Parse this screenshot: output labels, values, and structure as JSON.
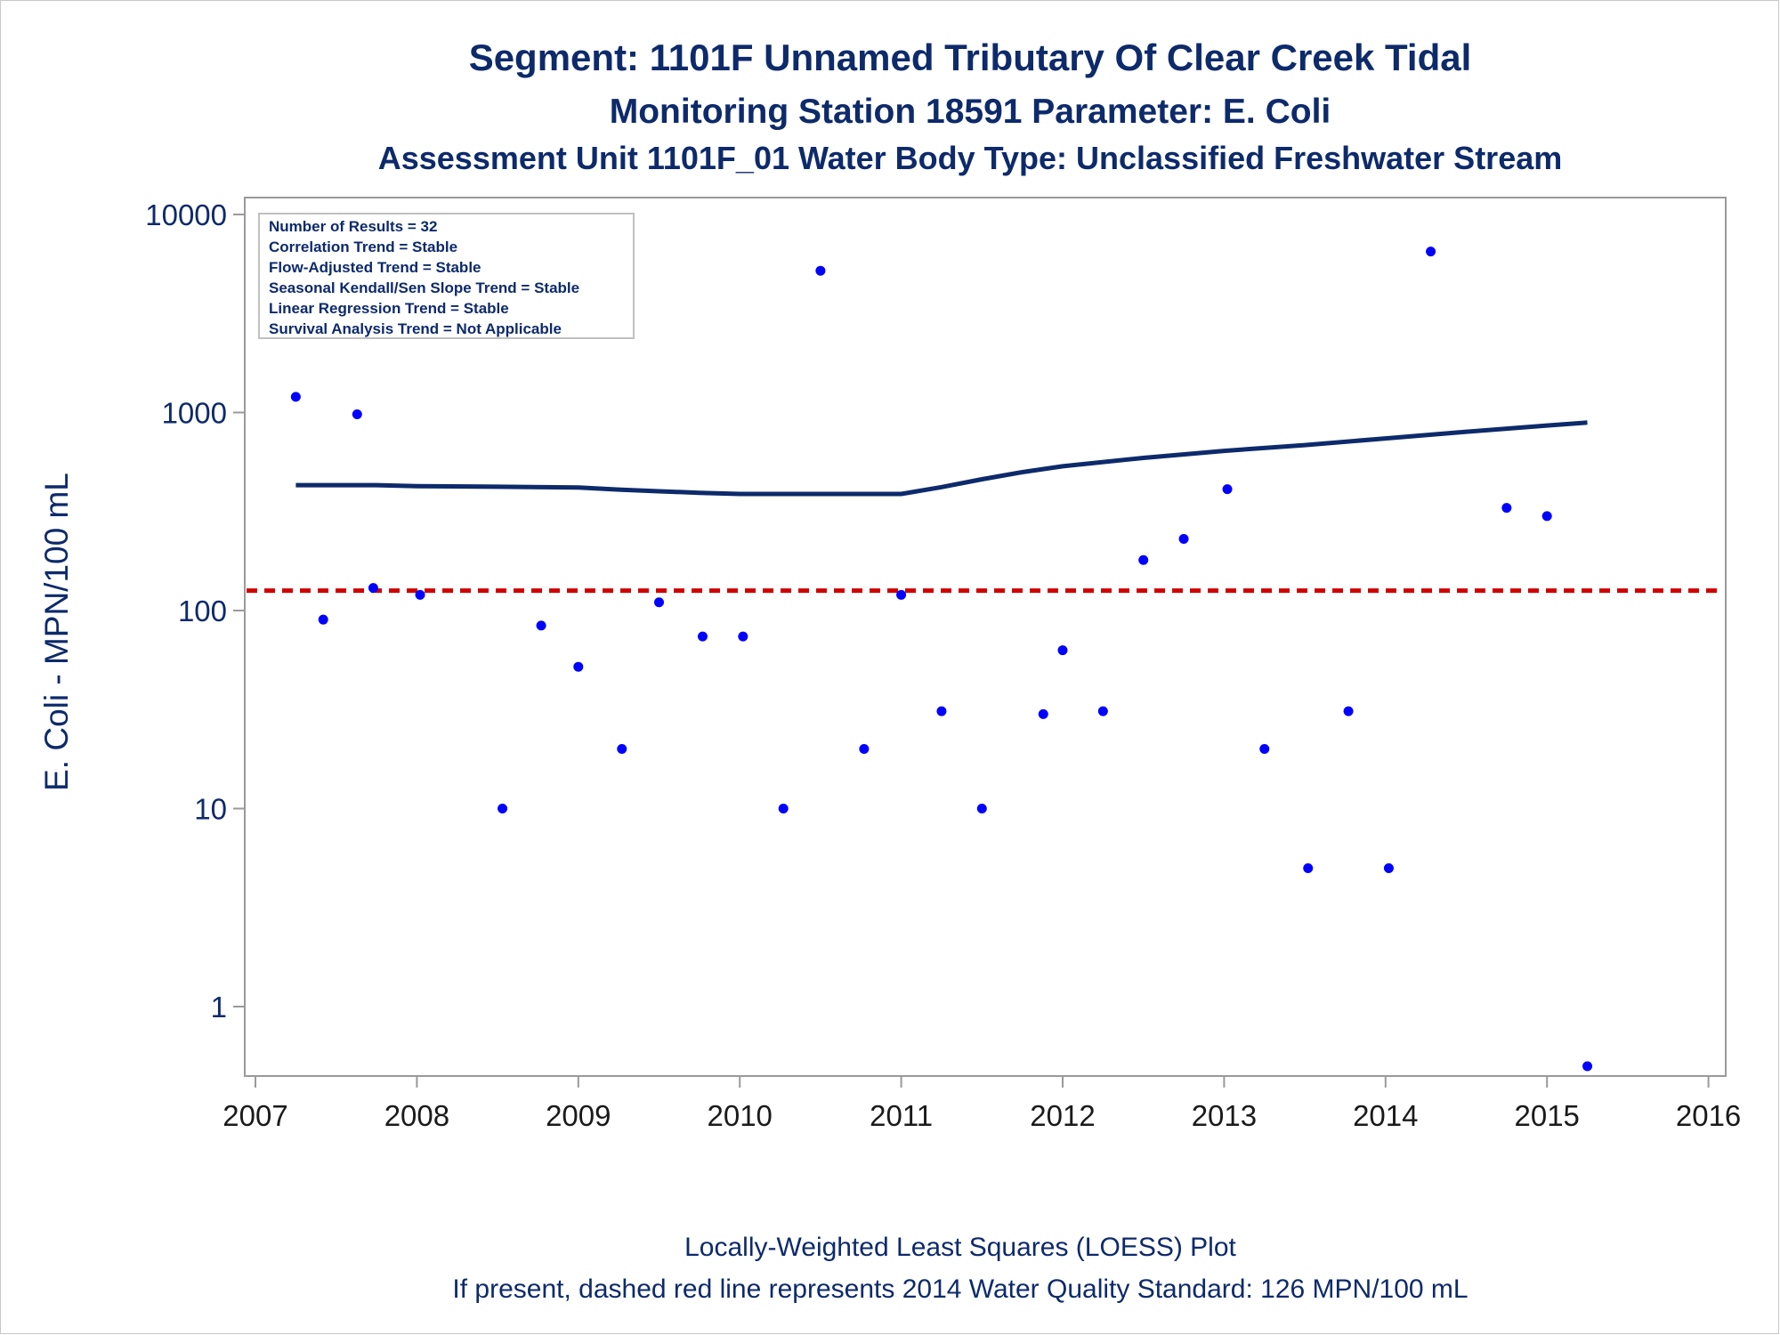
{
  "titles": {
    "line1": "Segment: 1101F  Unnamed Tributary Of Clear Creek Tidal",
    "line2": "Monitoring Station 18591 Parameter: E. Coli",
    "line3": "Assessment Unit 1101F_01   Water Body Type: Unclassified Freshwater Stream"
  },
  "stats_box": [
    "Number of Results = 32",
    "Correlation Trend = Stable",
    "Flow-Adjusted Trend = Stable",
    "Seasonal Kendall/Sen Slope Trend = Stable",
    "Linear Regression Trend = Stable",
    "Survival Analysis Trend = Not Applicable"
  ],
  "footnotes": {
    "line1": "Locally-Weighted Least Squares (LOESS) Plot",
    "line2": "If present, dashed red line represents 2014 Water Quality Standard: 126 MPN/100 mL"
  },
  "chart_data": {
    "type": "scatter",
    "title": "Segment: 1101F  Unnamed Tributary Of Clear Creek Tidal",
    "xlabel": "",
    "ylabel": "E. Coli - MPN/100 mL",
    "yscale": "log",
    "xlim": [
      2007,
      2016
    ],
    "ylim": [
      0.5,
      10000
    ],
    "x_ticks": [
      2007,
      2008,
      2009,
      2010,
      2011,
      2012,
      2013,
      2014,
      2015,
      2016
    ],
    "y_ticks": [
      1,
      10,
      100,
      1000,
      10000
    ],
    "y_tick_labels": [
      "1",
      "10",
      "100",
      "1000",
      "10000"
    ],
    "grid": false,
    "legend": "top-left",
    "colors": {
      "points": "#0000ff",
      "loess": "#0d2a6b",
      "standard": "#d00000",
      "text": "#0d2a6b"
    },
    "points": [
      [
        2007.25,
        1200
      ],
      [
        2007.42,
        90
      ],
      [
        2007.63,
        980
      ],
      [
        2007.73,
        130
      ],
      [
        2008.02,
        120
      ],
      [
        2008.53,
        10
      ],
      [
        2008.77,
        84
      ],
      [
        2009.0,
        52
      ],
      [
        2009.27,
        20
      ],
      [
        2009.5,
        110
      ],
      [
        2009.77,
        74
      ],
      [
        2010.02,
        74
      ],
      [
        2010.27,
        10
      ],
      [
        2010.5,
        5200
      ],
      [
        2010.77,
        20
      ],
      [
        2011.0,
        120
      ],
      [
        2011.25,
        31
      ],
      [
        2011.5,
        10
      ],
      [
        2011.88,
        30
      ],
      [
        2012.0,
        63
      ],
      [
        2012.25,
        31
      ],
      [
        2012.5,
        180
      ],
      [
        2012.75,
        230
      ],
      [
        2013.02,
        410
      ],
      [
        2013.25,
        20
      ],
      [
        2013.52,
        5
      ],
      [
        2013.77,
        31
      ],
      [
        2014.02,
        5
      ],
      [
        2014.28,
        6500
      ],
      [
        2014.75,
        330
      ],
      [
        2015.0,
        300
      ],
      [
        2015.25,
        0.5
      ]
    ],
    "loess": [
      [
        2007.25,
        430
      ],
      [
        2007.75,
        430
      ],
      [
        2008.0,
        425
      ],
      [
        2008.5,
        422
      ],
      [
        2009.0,
        418
      ],
      [
        2009.25,
        408
      ],
      [
        2009.5,
        400
      ],
      [
        2009.75,
        393
      ],
      [
        2010.0,
        388
      ],
      [
        2010.5,
        388
      ],
      [
        2011.0,
        388
      ],
      [
        2011.25,
        420
      ],
      [
        2011.5,
        460
      ],
      [
        2011.75,
        500
      ],
      [
        2012.0,
        535
      ],
      [
        2012.5,
        590
      ],
      [
        2013.0,
        640
      ],
      [
        2013.5,
        685
      ],
      [
        2014.0,
        740
      ],
      [
        2014.5,
        800
      ],
      [
        2015.0,
        860
      ],
      [
        2015.25,
        890
      ]
    ],
    "standard": {
      "value": 126,
      "label": "2014 Water Quality Standard: 126 MPN/100 mL"
    }
  }
}
